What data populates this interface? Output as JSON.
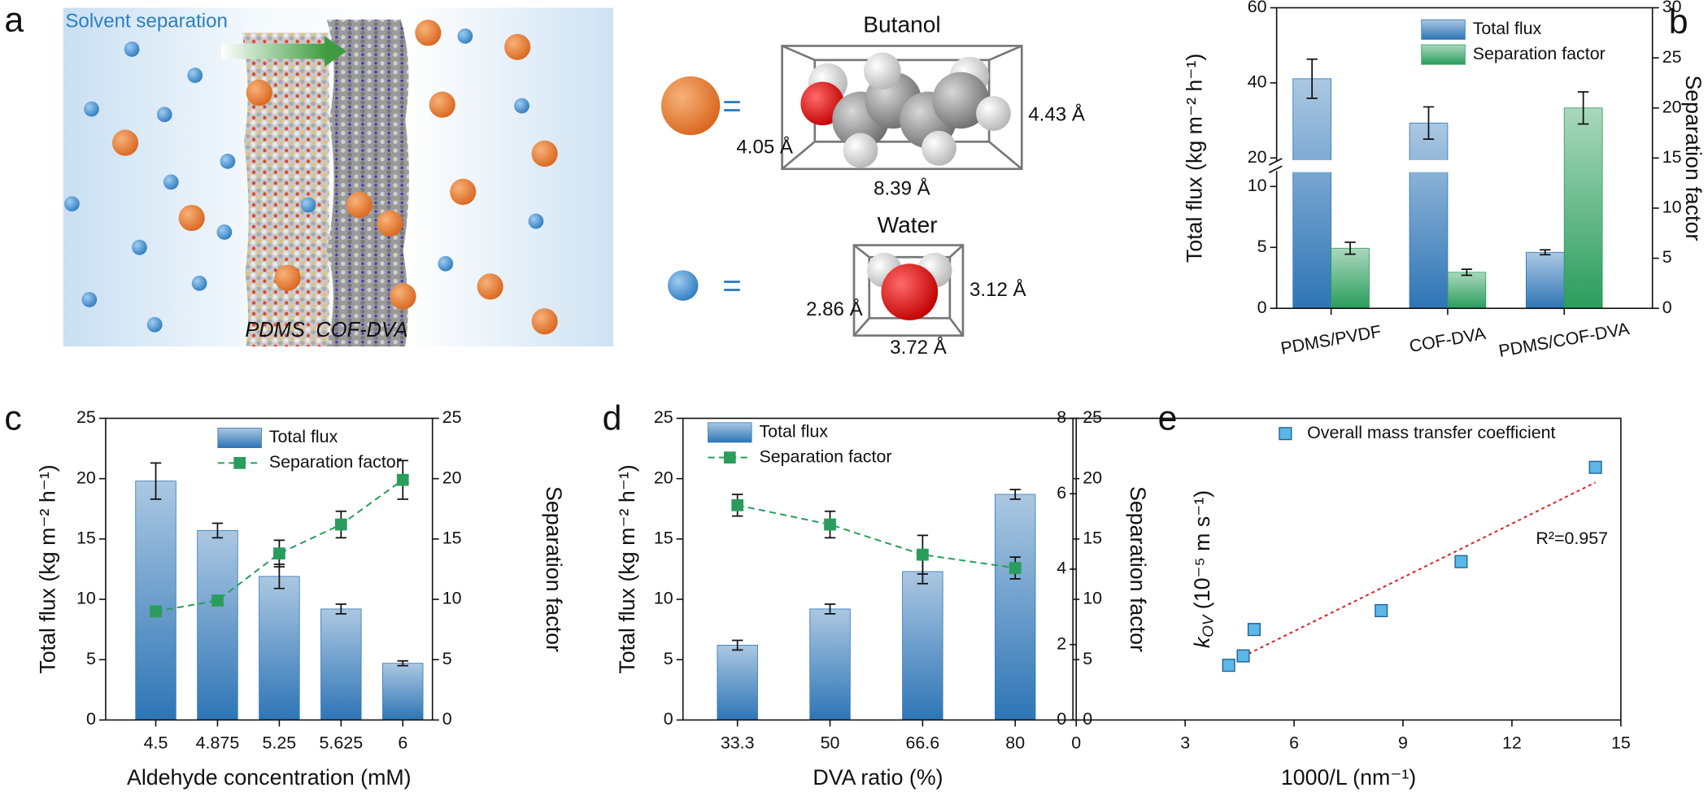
{
  "panel_labels": [
    "a",
    "b",
    "c",
    "d",
    "e"
  ],
  "illustration": {
    "title": "Solvent separation",
    "layer_1": "PDMS",
    "layer_2": "COF-DVA",
    "butanol": {
      "name": "Butanol",
      "equals": "=",
      "dim_1": "4.05 Å",
      "dim_2": "4.43 Å",
      "dim_3": "8.39 Å"
    },
    "water": {
      "name": "Water",
      "equals": "=",
      "dim_1": "2.86 Å",
      "dim_2": "3.12 Å",
      "dim_3": "3.72 Å"
    }
  },
  "chart_data": [
    {
      "type": "bar",
      "categories": [
        "PDMS/PVDF",
        "COF-DVA",
        "PDMS/COF-DVA"
      ],
      "ylabel": "Total flux (kg m⁻² h⁻¹)",
      "y2label": "Separation factor",
      "ylim": [
        0,
        60
      ],
      "ybreak": [
        11,
        20
      ],
      "yticks": [
        0,
        5,
        10,
        20,
        40,
        60
      ],
      "y2lim": [
        0,
        30
      ],
      "y2ticks": [
        0,
        5,
        10,
        15,
        20,
        25,
        30
      ],
      "legend": "upper right",
      "series": [
        {
          "name": "Total flux",
          "color": "#2e75b6",
          "values": [
            41.1,
            29.3,
            4.6
          ],
          "errors": [
            5.2,
            4.3,
            0.2
          ]
        },
        {
          "name": "Separation factor",
          "color": "#2a9d5c",
          "axis": "y2",
          "values": [
            6.0,
            3.6,
            20.0
          ],
          "errors": [
            0.6,
            0.3,
            1.6
          ]
        }
      ]
    },
    {
      "type": "bar",
      "categories": [
        "4.5",
        "4.875",
        "5.25",
        "5.625",
        "6"
      ],
      "xlabel": "Aldehyde concentration (mM)",
      "ylabel": "Total flux (kg m⁻² h⁻¹)",
      "y2label": "Separation factor",
      "ylim": [
        0,
        25
      ],
      "yticks": [
        0,
        5,
        10,
        15,
        20,
        25
      ],
      "y2lim": [
        0,
        25
      ],
      "y2ticks": [
        0,
        5,
        10,
        15,
        20,
        25
      ],
      "legend": "upper center",
      "series": [
        {
          "name": "Total flux",
          "color": "#2e75b6",
          "values": [
            19.8,
            15.7,
            11.9,
            9.2,
            4.7
          ],
          "errors": [
            1.5,
            0.6,
            1.0,
            0.4,
            0.2
          ]
        },
        {
          "name": "Separation factor",
          "color": "#2a9d5c",
          "axis": "y2",
          "kind": "line",
          "values": [
            9.0,
            9.9,
            13.8,
            16.2,
            19.9
          ],
          "errors": [
            0.2,
            0.4,
            1.1,
            1.1,
            1.6
          ]
        }
      ]
    },
    {
      "type": "bar",
      "categories": [
        "33.3",
        "50",
        "66.6",
        "80"
      ],
      "xlabel": "DVA ratio (%)",
      "ylabel": "Total flux (kg m⁻² h⁻¹)",
      "y2label": "Separation factor",
      "ylim": [
        0,
        25
      ],
      "yticks": [
        0,
        5,
        10,
        15,
        20,
        25
      ],
      "y2lim": [
        0,
        25
      ],
      "y2ticks": [
        0,
        5,
        10,
        15,
        20,
        25
      ],
      "legend": "upper left",
      "series": [
        {
          "name": "Total flux",
          "color": "#2e75b6",
          "values": [
            6.2,
            9.2,
            12.3,
            18.7
          ],
          "errors": [
            0.4,
            0.4,
            1.0,
            0.4
          ]
        },
        {
          "name": "Separation factor",
          "color": "#2a9d5c",
          "axis": "y2",
          "kind": "line",
          "values": [
            17.8,
            16.2,
            13.7,
            12.6
          ],
          "errors": [
            0.9,
            1.1,
            1.6,
            0.9
          ]
        }
      ]
    },
    {
      "type": "scatter",
      "xlabel": "1000/L (nm⁻¹)",
      "ylabel_symbol": "k",
      "ylabel_subscript": "OV",
      "ylabel": " (10⁻⁵ m s⁻¹)",
      "xlim": [
        0,
        15
      ],
      "xticks": [
        0,
        3,
        6,
        9,
        12,
        15
      ],
      "ylim": [
        0,
        8
      ],
      "yticks": [
        0,
        2,
        4,
        6,
        8
      ],
      "legend": "upper left",
      "series": [
        {
          "name": "Overall mass transfer coefficient",
          "color": "#5bb7e8",
          "x": [
            4.2,
            4.6,
            4.9,
            8.4,
            10.6,
            14.3
          ],
          "values": [
            1.45,
            1.7,
            2.4,
            2.9,
            4.2,
            6.7
          ]
        }
      ],
      "fit_line": {
        "color": "#e02020",
        "x": [
          4.1,
          14.3
        ],
        "values": [
          1.45,
          6.3
        ]
      },
      "annotation": "R²=0.957"
    }
  ]
}
